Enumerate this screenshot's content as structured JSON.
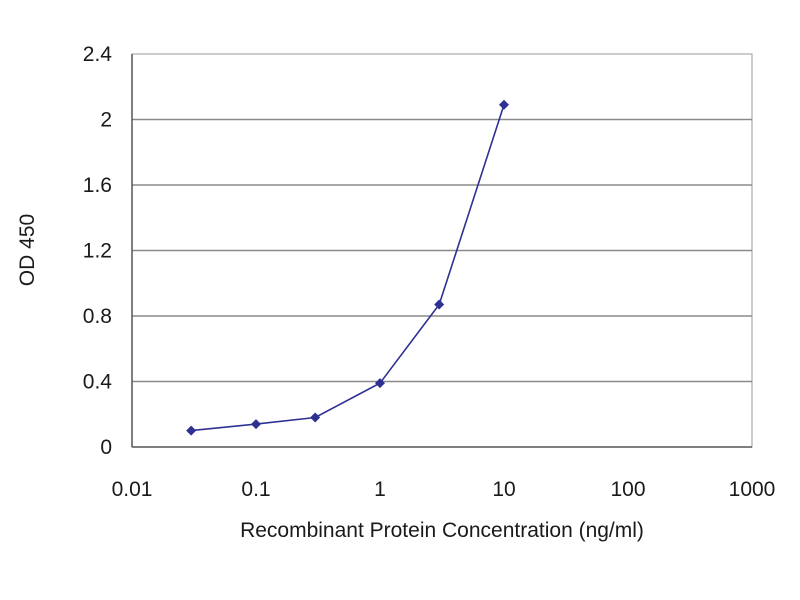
{
  "chart_data": {
    "type": "line",
    "title": "",
    "xlabel": "Recombinant Protein Concentration (ng/ml)",
    "ylabel": "OD 450",
    "x_scale": "log",
    "xlim": [
      0.01,
      1000
    ],
    "ylim": [
      0,
      2.4
    ],
    "x_ticks": [
      "0.01",
      "0.1",
      "1",
      "10",
      "100",
      "1000"
    ],
    "y_ticks": [
      "0",
      "0.4",
      "0.8",
      "1.2",
      "1.6",
      "2",
      "2.4"
    ],
    "grid": "horizontal",
    "legend": "none",
    "series": [
      {
        "x": [
          0.03,
          0.1,
          0.3,
          1,
          3,
          10
        ],
        "y": [
          0.1,
          0.14,
          0.18,
          0.39,
          0.87,
          2.09
        ],
        "color": "#2e3192",
        "marker": "diamond"
      }
    ]
  }
}
